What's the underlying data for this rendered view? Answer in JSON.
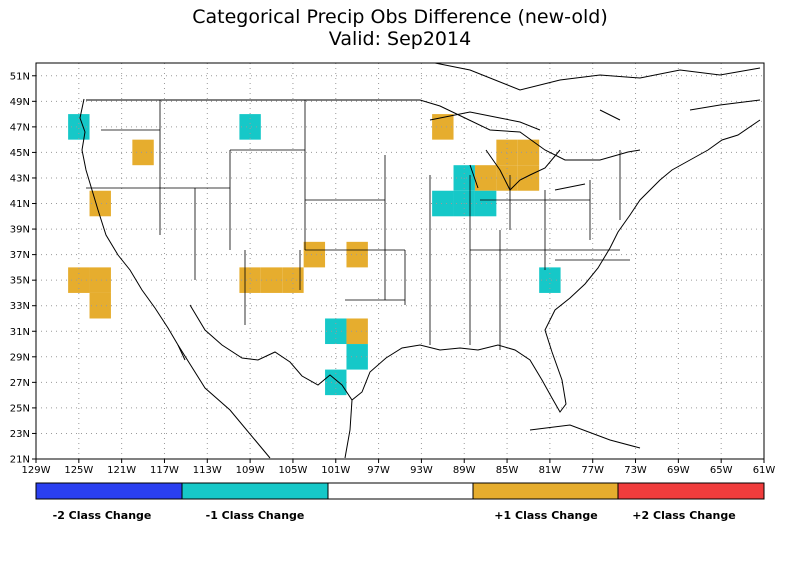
{
  "title": "Categorical Precip Obs Difference (new-old)",
  "subtitle": "Valid: Sep2014",
  "map": {
    "lon_range": [
      -129,
      -61
    ],
    "lat_range": [
      21,
      52
    ],
    "lon_ticks": [
      "129W",
      "125W",
      "121W",
      "117W",
      "113W",
      "109W",
      "105W",
      "101W",
      "97W",
      "93W",
      "89W",
      "85W",
      "81W",
      "77W",
      "73W",
      "69W",
      "65W",
      "61W"
    ],
    "lat_ticks": [
      "21N",
      "23N",
      "25N",
      "27N",
      "29N",
      "31N",
      "33N",
      "35N",
      "37N",
      "39N",
      "41N",
      "43N",
      "45N",
      "47N",
      "49N",
      "51N"
    ],
    "grid": "dotted",
    "cells": [
      {
        "lon": -125,
        "lat": 47,
        "cls": -1
      },
      {
        "lon": -109,
        "lat": 47,
        "cls": -1
      },
      {
        "lon": -119,
        "lat": 45,
        "cls": 1
      },
      {
        "lon": -91,
        "lat": 47,
        "cls": 1
      },
      {
        "lon": -123,
        "lat": 41,
        "cls": 1
      },
      {
        "lon": -87,
        "lat": 43,
        "cls": 1
      },
      {
        "lon": -85,
        "lat": 43,
        "cls": 1
      },
      {
        "lon": -83,
        "lat": 43,
        "cls": 1
      },
      {
        "lon": -85,
        "lat": 45,
        "cls": 1
      },
      {
        "lon": -83,
        "lat": 45,
        "cls": 1
      },
      {
        "lon": -89,
        "lat": 41,
        "cls": -1
      },
      {
        "lon": -91,
        "lat": 41,
        "cls": -1
      },
      {
        "lon": -89,
        "lat": 43,
        "cls": -1
      },
      {
        "lon": -87,
        "lat": 41,
        "cls": -1
      },
      {
        "lon": -103,
        "lat": 37,
        "cls": 1
      },
      {
        "lon": -99,
        "lat": 37,
        "cls": 1
      },
      {
        "lon": -125,
        "lat": 35,
        "cls": 1
      },
      {
        "lon": -123,
        "lat": 35,
        "cls": 1
      },
      {
        "lon": -123,
        "lat": 33,
        "cls": 1
      },
      {
        "lon": -109,
        "lat": 35,
        "cls": 1
      },
      {
        "lon": -105,
        "lat": 35,
        "cls": 1
      },
      {
        "lon": -107,
        "lat": 35,
        "cls": 1
      },
      {
        "lon": -81,
        "lat": 35,
        "cls": -1
      },
      {
        "lon": -101,
        "lat": 31,
        "cls": -1
      },
      {
        "lon": -99,
        "lat": 31,
        "cls": 1
      },
      {
        "lon": -99,
        "lat": 29,
        "cls": -1
      },
      {
        "lon": -101,
        "lat": 27,
        "cls": -1
      }
    ]
  },
  "legend": {
    "colors": {
      "-2": "#2a3ff0",
      "-1": "#16c8c8",
      "0": "#ffffff",
      "1": "#e6ad2e",
      "2": "#f03c3c"
    },
    "labels": [
      "-2 Class Change",
      "-1 Class Change",
      "+1 Class Change",
      "+2 Class Change"
    ]
  }
}
